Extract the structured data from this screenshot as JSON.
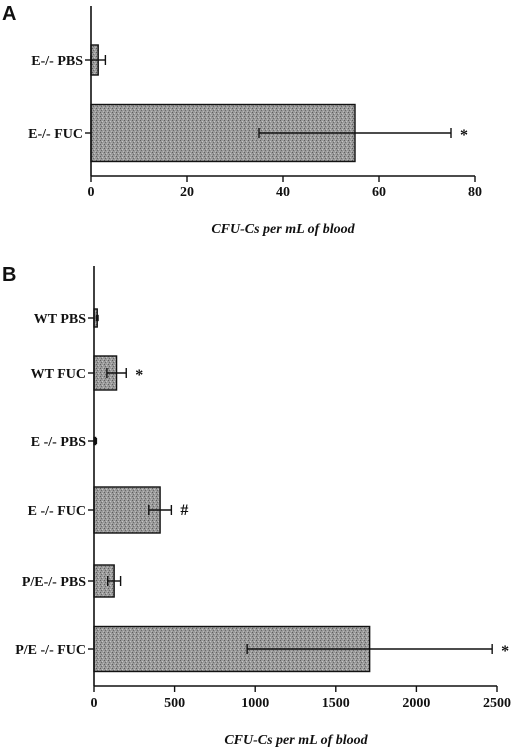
{
  "chart_data": [
    {
      "type": "bar",
      "orientation": "horizontal",
      "panel": "A",
      "categories": [
        "E-/- PBS",
        "E-/- FUC"
      ],
      "values": [
        1.5,
        55
      ],
      "errors": [
        1.5,
        20
      ],
      "annotations": [
        "",
        "*"
      ],
      "xlabel": "CFU-Cs per mL of blood",
      "xlim": [
        0,
        80
      ],
      "xticks": [
        0,
        20,
        40,
        60,
        80
      ],
      "grid": false
    },
    {
      "type": "bar",
      "orientation": "horizontal",
      "panel": "B",
      "categories": [
        "WT PBS",
        "WT FUC",
        "E -/-  PBS",
        "E -/-  FUC",
        "P/E-/- PBS",
        "P/E -/- FUC"
      ],
      "values": [
        20,
        140,
        10,
        410,
        125,
        1710
      ],
      "errors": [
        5,
        60,
        5,
        70,
        40,
        760
      ],
      "annotations": [
        "",
        "*",
        "",
        "#",
        "",
        "*"
      ],
      "xlabel": "CFU-Cs per mL of blood",
      "xlim": [
        0,
        2500
      ],
      "xticks": [
        0,
        500,
        1000,
        1500,
        2000,
        2500
      ],
      "grid": false
    }
  ]
}
